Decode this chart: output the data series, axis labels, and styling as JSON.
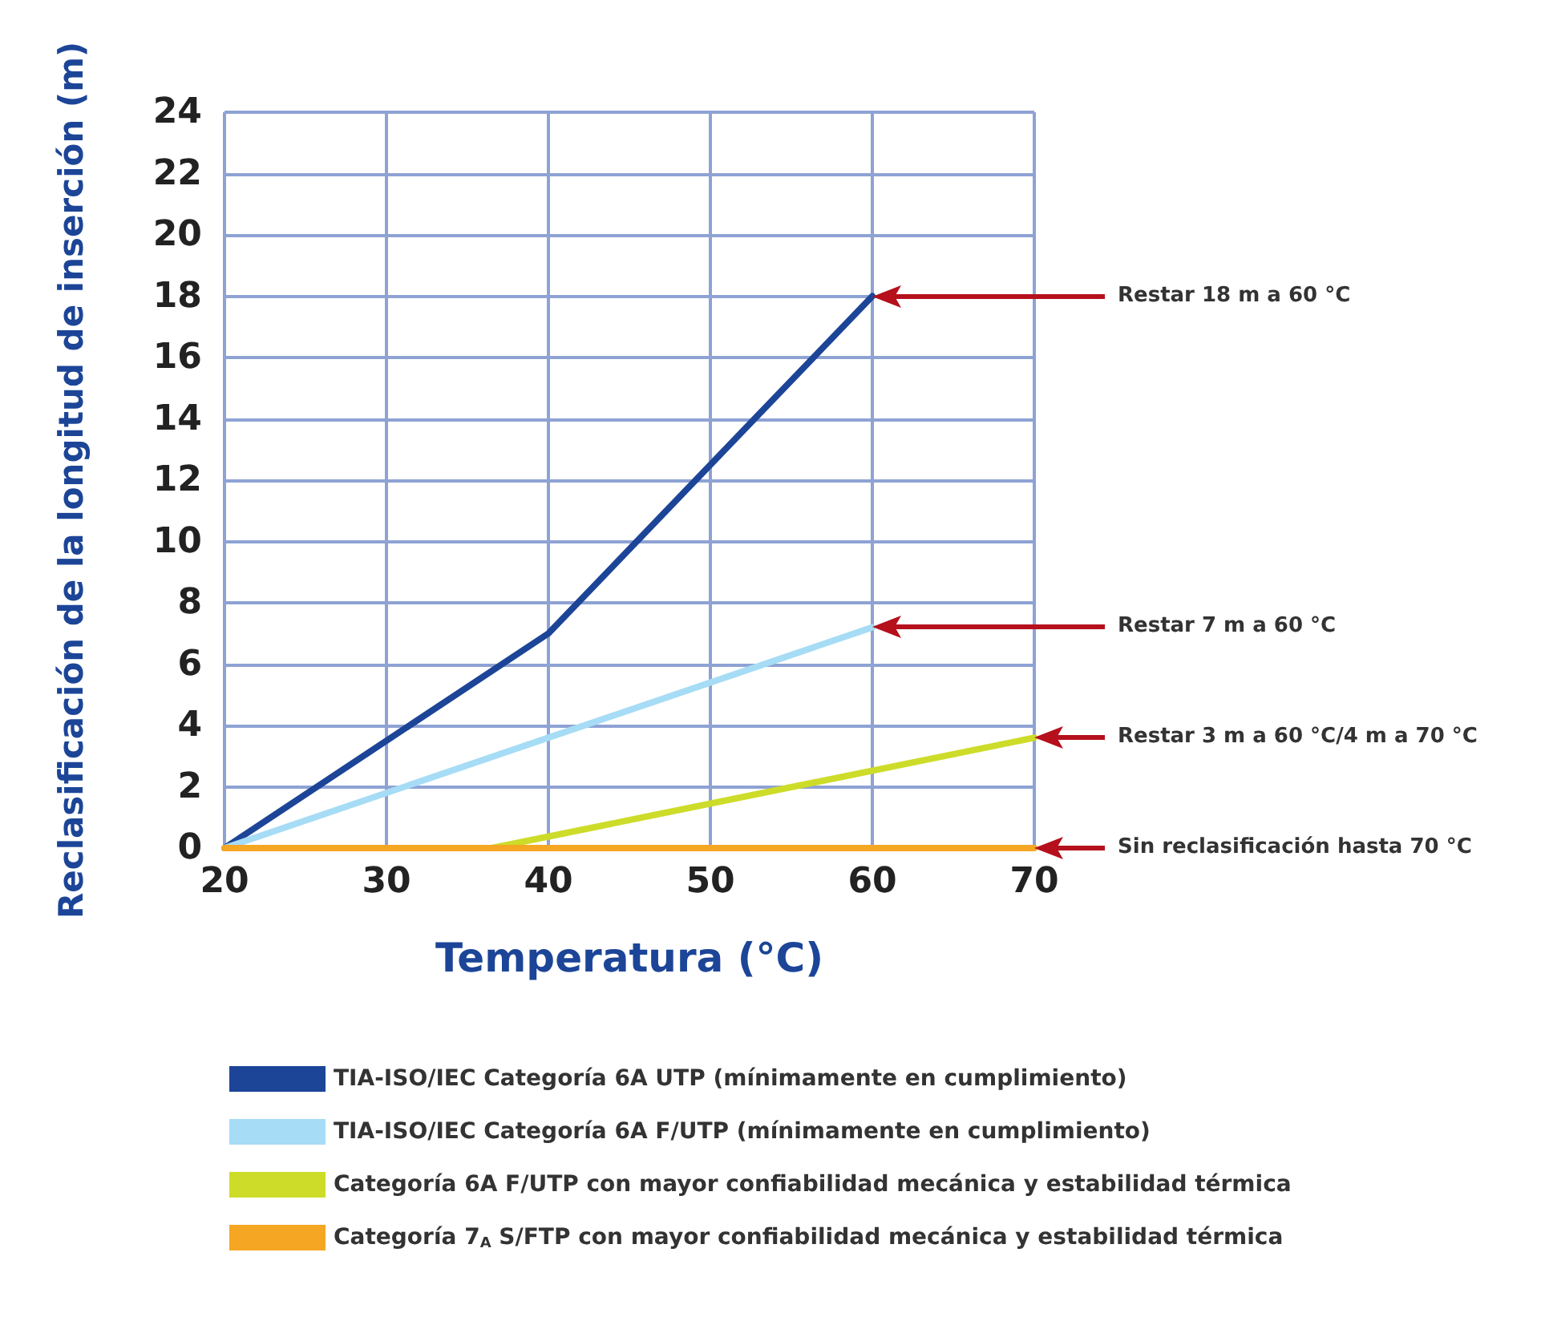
{
  "chart_data": {
    "type": "line",
    "xlabel": "Temperatura (°C)",
    "ylabel": "Reclasificación de la longitud de inserción (m)",
    "xlim": [
      20,
      70
    ],
    "xticks": [
      20,
      30,
      40,
      50,
      60,
      70
    ],
    "ylim": [
      0,
      24
    ],
    "yticks": [
      0,
      2,
      4,
      6,
      8,
      10,
      12,
      14,
      16,
      18,
      20,
      22,
      24
    ],
    "grid": true,
    "legend": "bottom",
    "marker": "none",
    "series": [
      {
        "name": "TIA-ISO/IEC Categoría 6A UTP (mínimamente en cumplimiento)",
        "color": "#1c4598",
        "x": [
          20,
          40,
          60
        ],
        "values": [
          0,
          7,
          18
        ]
      },
      {
        "name": "TIA-ISO/IEC Categoría 6A F/UTP (mínimamente en cumplimiento)",
        "color": "#a6dcf5",
        "x": [
          20,
          60
        ],
        "values": [
          0,
          7.2
        ]
      },
      {
        "name": "Categoría 6A F/UTP con mayor confiabilidad mecánica y estabilidad térmica",
        "color": "#cddc29",
        "x": [
          36.5,
          70
        ],
        "values": [
          0,
          3.6
        ]
      },
      {
        "name": "Categoría 7$_{A}$ S/FTP con mayor confiabilidad mecánica y estabilidad térmica",
        "color": "#f5a623",
        "x": [
          20,
          70
        ],
        "values": [
          0,
          0
        ]
      }
    ],
    "annotations": [
      "Restar 18 m a 60 °C",
      "Restar 7 m a 60 °C",
      "Restar 3 m a 60 °C/4 m a 70 °C",
      "Sin reclasificación hasta 70 °C"
    ]
  }
}
